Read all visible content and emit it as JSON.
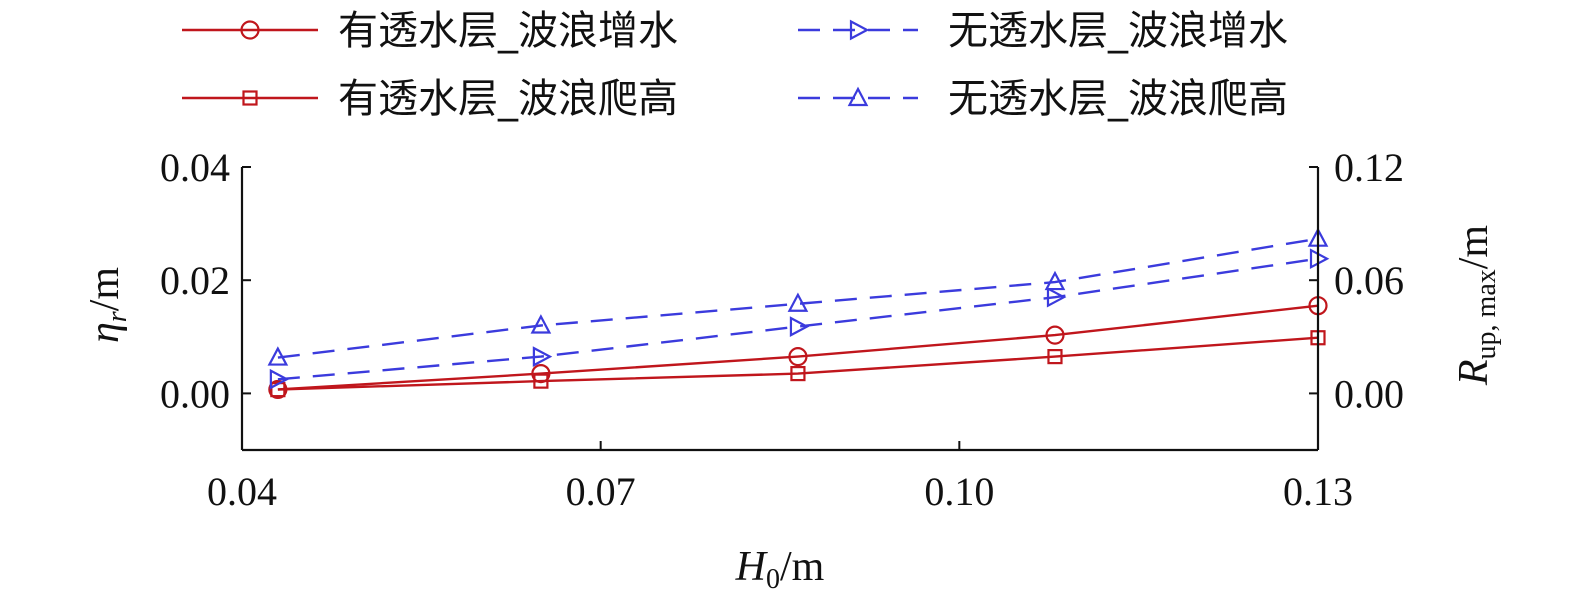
{
  "chart_data": {
    "type": "line",
    "xlabel_main": "H",
    "xlabel_sub": "0",
    "xlabel_unit": "/m",
    "ylabel_left_main": "η",
    "ylabel_left_sub": "r",
    "ylabel_left_unit": "/m",
    "ylabel_right_main": "R",
    "ylabel_right_sub": "up, max",
    "ylabel_right_unit": "/m",
    "xlim": [
      0.04,
      0.13
    ],
    "ylim_left": [
      -0.01,
      0.04
    ],
    "ylim_right": [
      -0.03,
      0.12
    ],
    "x_ticks": [
      "0.04",
      "0.07",
      "0.10",
      "0.13"
    ],
    "y_left_ticks": [
      "0.00",
      "0.02",
      "0.04"
    ],
    "y_right_ticks": [
      "0.00",
      "0.06",
      "0.12"
    ],
    "x": [
      0.043,
      0.065,
      0.0865,
      0.108,
      0.13
    ],
    "series": [
      {
        "name": "有透水层_波浪增水",
        "axis": "left",
        "marker": "circle",
        "style": "solid",
        "color": "#c0161c",
        "values": [
          0.0007,
          0.0035,
          0.0065,
          0.0103,
          0.0155
        ]
      },
      {
        "name": "有透水层_波浪爬高",
        "axis": "right",
        "marker": "square",
        "style": "solid",
        "color": "#c0161c",
        "values": [
          0.002,
          0.0065,
          0.0105,
          0.0195,
          0.0295
        ]
      },
      {
        "name": "无透水层_波浪增水",
        "axis": "left",
        "marker": "triangle-right",
        "style": "dashed",
        "color": "#3b3bdd",
        "values": [
          0.0025,
          0.0065,
          0.0118,
          0.017,
          0.0238
        ]
      },
      {
        "name": "无透水层_波浪爬高",
        "axis": "right",
        "marker": "triangle-up",
        "style": "dashed",
        "color": "#3b3bdd",
        "values": [
          0.019,
          0.036,
          0.0475,
          0.059,
          0.082
        ]
      }
    ],
    "legend_position": "top"
  }
}
